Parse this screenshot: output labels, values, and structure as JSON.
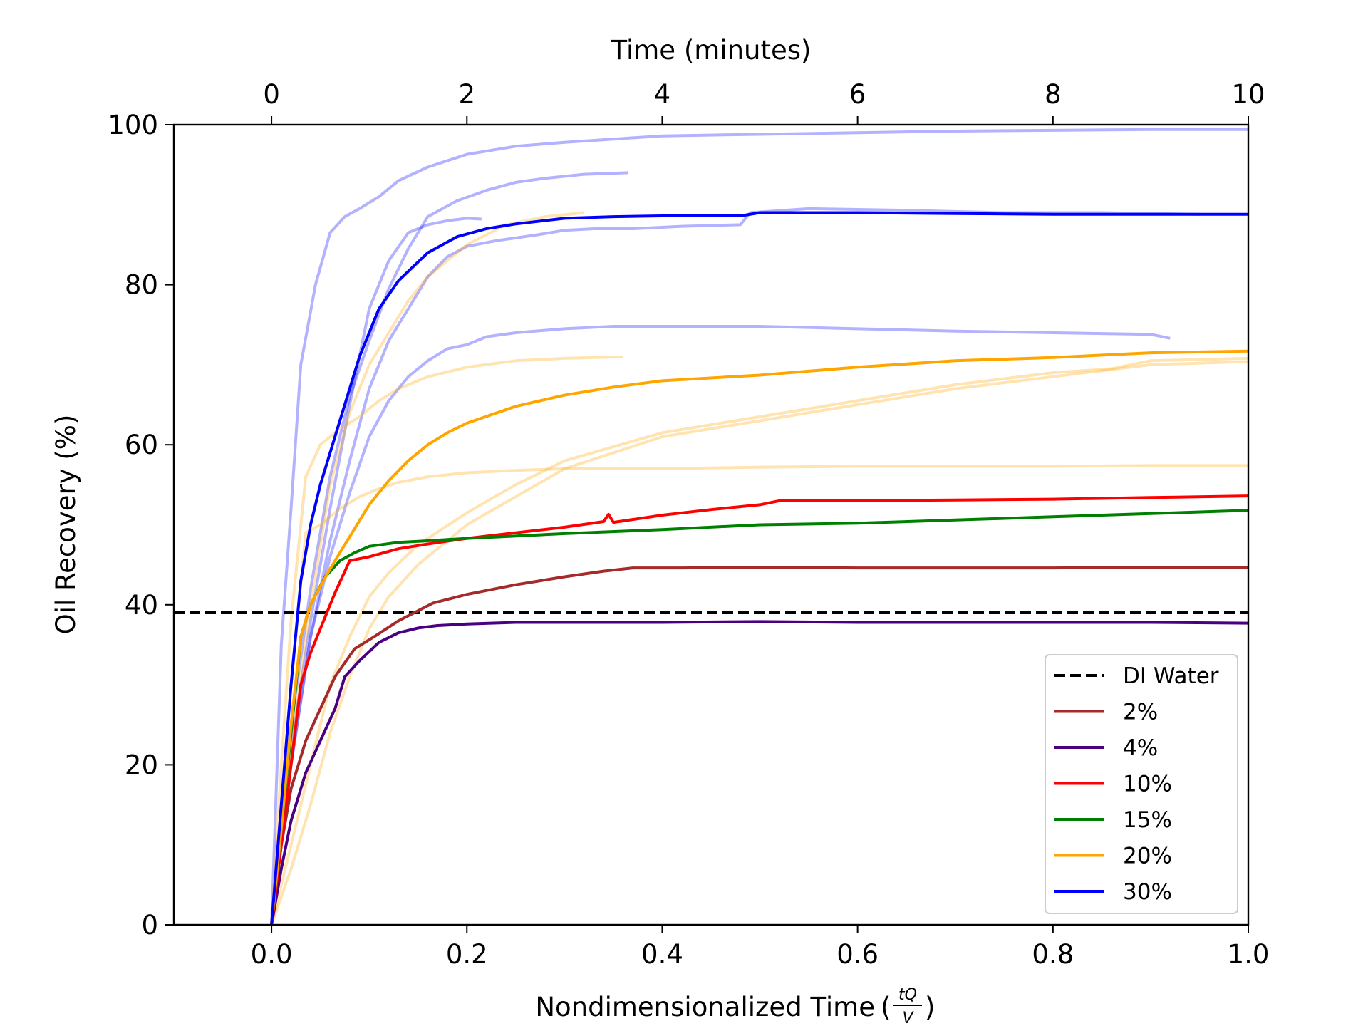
{
  "chart_data": {
    "type": "line",
    "title": "",
    "xlabel_prefix": "Nondimensionalized Time",
    "xlabel_fraction": {
      "numerator": "tQ",
      "denominator": "V"
    },
    "ylabel": "Oil Recovery (%)",
    "secondary_xlabel": "Time (minutes)",
    "xlim": [
      -0.1,
      1.0
    ],
    "ylim": [
      0,
      100
    ],
    "secondary_xlim": [
      -1.0,
      10.0
    ],
    "xticks": [
      "0.0",
      "0.2",
      "0.4",
      "0.6",
      "0.8",
      "1.0"
    ],
    "xtick_values": [
      0.0,
      0.2,
      0.4,
      0.6,
      0.8,
      1.0
    ],
    "yticks": [
      "0",
      "20",
      "40",
      "60",
      "80",
      "100"
    ],
    "ytick_values": [
      0,
      20,
      40,
      60,
      80,
      100
    ],
    "secondary_xticks": [
      "0",
      "2",
      "4",
      "6",
      "8",
      "10"
    ],
    "secondary_xtick_values": [
      0,
      2,
      4,
      6,
      8,
      10
    ],
    "grid": false,
    "legend_position": "lower-right",
    "reference_line": {
      "name": "DI Water",
      "y": 39,
      "color": "#000000",
      "style": "dashed"
    },
    "series": [
      {
        "name": "2%",
        "color": "#a52a2a",
        "x": [
          0,
          0.01,
          0.02,
          0.035,
          0.05,
          0.065,
          0.085,
          0.105,
          0.13,
          0.165,
          0.2,
          0.25,
          0.3,
          0.34,
          0.37,
          0.42,
          0.5,
          0.6,
          0.7,
          0.8,
          0.9,
          1.0
        ],
        "y": [
          0,
          10,
          17,
          23,
          27,
          31,
          34.5,
          36,
          38,
          40.2,
          41.3,
          42.5,
          43.5,
          44.2,
          44.6,
          44.6,
          44.7,
          44.6,
          44.6,
          44.6,
          44.7,
          44.7
        ]
      },
      {
        "name": "4%",
        "color": "#4b0082",
        "x": [
          0,
          0.01,
          0.02,
          0.035,
          0.05,
          0.065,
          0.075,
          0.09,
          0.11,
          0.13,
          0.15,
          0.17,
          0.2,
          0.25,
          0.3,
          0.4,
          0.5,
          0.6,
          0.7,
          0.8,
          0.9,
          1.0
        ],
        "y": [
          0,
          7,
          13,
          19,
          23,
          27,
          31,
          33,
          35.3,
          36.5,
          37.1,
          37.4,
          37.6,
          37.8,
          37.8,
          37.8,
          37.9,
          37.8,
          37.8,
          37.8,
          37.8,
          37.7
        ]
      },
      {
        "name": "10%",
        "color": "#ff0000",
        "x": [
          0,
          0.01,
          0.02,
          0.03,
          0.04,
          0.05,
          0.065,
          0.08,
          0.1,
          0.13,
          0.16,
          0.2,
          0.25,
          0.3,
          0.34,
          0.345,
          0.35,
          0.4,
          0.45,
          0.5,
          0.52,
          0.6,
          0.7,
          0.8,
          0.9,
          1.0
        ],
        "y": [
          0,
          10,
          20,
          30,
          34,
          37,
          41.5,
          45.5,
          46,
          47,
          47.6,
          48.3,
          49,
          49.7,
          50.4,
          51.3,
          50.3,
          51.2,
          51.9,
          52.5,
          53,
          53,
          53.1,
          53.2,
          53.4,
          53.6
        ]
      },
      {
        "name": "15%",
        "color": "#008000",
        "x": [
          0,
          0.01,
          0.02,
          0.03,
          0.04,
          0.055,
          0.07,
          0.085,
          0.1,
          0.13,
          0.16,
          0.2,
          0.3,
          0.4,
          0.5,
          0.6,
          0.7,
          0.8,
          0.9,
          1.0
        ],
        "y": [
          0,
          12,
          24,
          36,
          40,
          43.5,
          45.5,
          46.5,
          47.3,
          47.8,
          48,
          48.3,
          48.9,
          49.4,
          50,
          50.2,
          50.6,
          51,
          51.4,
          51.8
        ]
      },
      {
        "name": "20%",
        "color": "#ffa500",
        "x": [
          0,
          0.01,
          0.02,
          0.03,
          0.04,
          0.06,
          0.08,
          0.1,
          0.12,
          0.14,
          0.16,
          0.18,
          0.2,
          0.25,
          0.3,
          0.35,
          0.4,
          0.5,
          0.6,
          0.7,
          0.8,
          0.9,
          1.0
        ],
        "y": [
          0,
          12,
          25,
          36,
          40,
          44.5,
          48.5,
          52.5,
          55.5,
          58,
          60,
          61.5,
          62.7,
          64.8,
          66.2,
          67.2,
          68,
          68.7,
          69.7,
          70.5,
          70.9,
          71.5,
          71.7
        ]
      },
      {
        "name": "30%",
        "color": "#0000ff",
        "x": [
          0,
          0.01,
          0.02,
          0.03,
          0.04,
          0.05,
          0.06,
          0.075,
          0.09,
          0.11,
          0.13,
          0.16,
          0.19,
          0.22,
          0.25,
          0.3,
          0.35,
          0.4,
          0.48,
          0.5,
          0.6,
          0.7,
          0.8,
          0.9,
          1.0
        ],
        "y": [
          0,
          15,
          30,
          43,
          50,
          55,
          59,
          65,
          71,
          77,
          80.5,
          84,
          86,
          87,
          87.6,
          88.3,
          88.5,
          88.6,
          88.6,
          89,
          89,
          88.9,
          88.8,
          88.8,
          88.8
        ]
      }
    ],
    "replicate_traces": [
      {
        "group": "30%",
        "color": "#0000ff",
        "x": [
          0,
          0.01,
          0.02,
          0.03,
          0.045,
          0.06,
          0.075,
          0.09,
          0.11,
          0.13,
          0.16,
          0.2,
          0.25,
          0.3,
          0.35,
          0.4,
          0.5,
          0.6,
          0.7,
          0.8,
          0.9,
          1.0
        ],
        "y": [
          0,
          35,
          52,
          70,
          80,
          86.5,
          88.5,
          89.5,
          91,
          93,
          94.7,
          96.3,
          97.3,
          97.8,
          98.2,
          98.6,
          98.8,
          99,
          99.2,
          99.3,
          99.4,
          99.4
        ]
      },
      {
        "group": "30%",
        "color": "#0000ff",
        "x": [
          0,
          0.02,
          0.04,
          0.06,
          0.08,
          0.1,
          0.12,
          0.14,
          0.16,
          0.19,
          0.22,
          0.25,
          0.28,
          0.32,
          0.365
        ],
        "y": [
          0,
          25,
          42,
          56,
          66,
          73,
          79.5,
          84.5,
          88.5,
          90.5,
          91.8,
          92.8,
          93.3,
          93.8,
          94
        ]
      },
      {
        "group": "30%",
        "color": "#0000ff",
        "x": [
          0,
          0.02,
          0.04,
          0.06,
          0.08,
          0.1,
          0.12,
          0.14,
          0.16,
          0.18,
          0.2,
          0.215
        ],
        "y": [
          0,
          22,
          38,
          52,
          65,
          77,
          83,
          86.5,
          87.5,
          88,
          88.3,
          88.2
        ]
      },
      {
        "group": "30%",
        "color": "#0000ff",
        "x": [
          0,
          0.02,
          0.04,
          0.06,
          0.08,
          0.1,
          0.12,
          0.14,
          0.16,
          0.18,
          0.2,
          0.23,
          0.27,
          0.3,
          0.33,
          0.37,
          0.42,
          0.48,
          0.49,
          0.55,
          0.65,
          0.75,
          0.85,
          0.95
        ],
        "y": [
          0,
          20,
          36,
          48,
          58,
          67,
          73,
          77,
          81,
          83.5,
          84.8,
          85.5,
          86.2,
          86.8,
          87,
          87,
          87.3,
          87.5,
          89,
          89.5,
          89.3,
          89,
          89,
          88.8
        ]
      },
      {
        "group": "30%",
        "color": "#0000ff",
        "x": [
          0,
          0.02,
          0.04,
          0.06,
          0.08,
          0.1,
          0.12,
          0.14,
          0.16,
          0.18,
          0.2,
          0.22,
          0.25,
          0.3,
          0.35,
          0.4,
          0.5,
          0.6,
          0.7,
          0.8,
          0.9,
          0.92
        ],
        "y": [
          0,
          20,
          36,
          46,
          54,
          61,
          65.5,
          68.5,
          70.5,
          72,
          72.5,
          73.5,
          74,
          74.5,
          74.8,
          74.8,
          74.8,
          74.5,
          74.2,
          74,
          73.8,
          73.3
        ]
      },
      {
        "group": "20%",
        "color": "#ffa500",
        "x": [
          0,
          0.01,
          0.02,
          0.035,
          0.05,
          0.07,
          0.09,
          0.11,
          0.13,
          0.16,
          0.2,
          0.25,
          0.3,
          0.36
        ],
        "y": [
          0,
          20,
          38,
          56,
          60,
          62,
          63.5,
          65.5,
          67,
          68.5,
          69.7,
          70.5,
          70.8,
          71
        ]
      },
      {
        "group": "20%",
        "color": "#ffa500",
        "x": [
          0,
          0.02,
          0.04,
          0.06,
          0.08,
          0.1,
          0.12,
          0.14,
          0.16,
          0.2,
          0.24,
          0.28,
          0.32
        ],
        "y": [
          0,
          22,
          40,
          55,
          64,
          70,
          74,
          78,
          81,
          85,
          87.5,
          88.5,
          89
        ]
      },
      {
        "group": "20%",
        "color": "#ffa500",
        "x": [
          0,
          0.01,
          0.02,
          0.035,
          0.05,
          0.07,
          0.09,
          0.11,
          0.13,
          0.16,
          0.2,
          0.25,
          0.3,
          0.4,
          0.5,
          0.6,
          0.7,
          0.8,
          0.9,
          1.0
        ],
        "y": [
          0,
          15,
          30,
          49,
          50,
          52,
          53.5,
          54.5,
          55.3,
          56,
          56.5,
          56.8,
          57,
          57,
          57.2,
          57.3,
          57.3,
          57.3,
          57.4,
          57.4
        ]
      },
      {
        "group": "20%",
        "color": "#ffa500",
        "x": [
          0,
          0.02,
          0.04,
          0.06,
          0.08,
          0.1,
          0.12,
          0.15,
          0.2,
          0.25,
          0.3,
          0.4,
          0.5,
          0.6,
          0.7,
          0.8,
          0.86,
          0.9,
          1.0
        ],
        "y": [
          0,
          10,
          20,
          30,
          36,
          41,
          44,
          47.5,
          51.5,
          55,
          58,
          61.5,
          63.5,
          65.5,
          67.5,
          69,
          69.5,
          70.5,
          70.8
        ]
      },
      {
        "group": "20%",
        "color": "#ffa500",
        "x": [
          0,
          0.02,
          0.04,
          0.06,
          0.08,
          0.1,
          0.12,
          0.15,
          0.2,
          0.25,
          0.3,
          0.4,
          0.5,
          0.6,
          0.7,
          0.8,
          0.9,
          1.0
        ],
        "y": [
          0,
          7,
          15,
          24,
          31,
          37,
          41,
          45,
          50,
          53.5,
          57,
          61,
          63,
          65,
          67,
          68.5,
          70,
          70.4
        ]
      }
    ]
  }
}
